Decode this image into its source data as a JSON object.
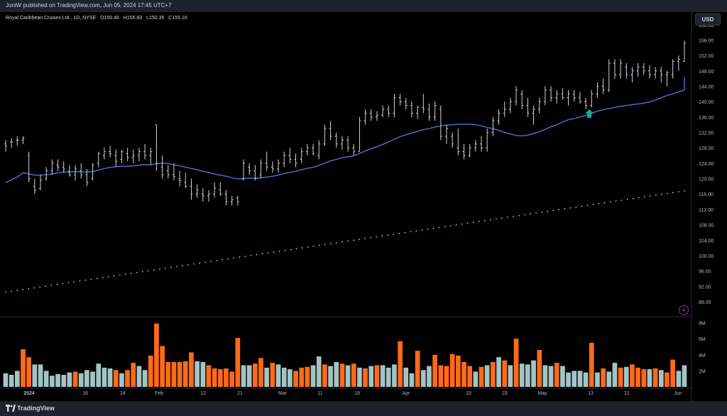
{
  "header": {
    "published_text": "JoniW published on TradingView.com, Jun 05, 2024 17:45 UTC+7"
  },
  "legend": {
    "symbol": "Royal Caribbean Cruises Ltd., 1D, NYSE",
    "o_label": "O",
    "o_value": "150.46",
    "h_label": "H",
    "h_value": "155.83",
    "l_label": "L",
    "l_value": "150.35",
    "c_label": "C",
    "c_value": "155.16"
  },
  "currency_label": "USD",
  "footer": {
    "brand": "TradingView"
  },
  "colors": {
    "background": "#000000",
    "bar": "#d1d4dc",
    "ma_fast": "#4a74d4",
    "ma_slow": "#f5c342",
    "volume_up": "#a3c4c4",
    "volume_down": "#ff6a1a",
    "arrow": "#26a69a",
    "grid_text": "#b2b5be"
  },
  "chart_data": {
    "type": "ohlc",
    "price_axis": {
      "ticks": [
        "88.00",
        "92.00",
        "96.00",
        "100.00",
        "104.00",
        "108.00",
        "112.00",
        "116.00",
        "120.00",
        "124.00",
        "128.00",
        "132.00",
        "136.00",
        "140.00",
        "144.00",
        "148.00",
        "152.00",
        "156.00",
        "160.00"
      ],
      "range": [
        85,
        160
      ]
    },
    "volume_axis": {
      "ticks": [
        "2M",
        "4M",
        "6M",
        "8M"
      ],
      "range": [
        0,
        8.4
      ]
    },
    "time_axis": [
      "2024",
      "16",
      "24",
      "Feb",
      "12",
      "21",
      "Mar",
      "11",
      "19",
      "Apr",
      "15",
      "23",
      "May",
      "13",
      "21",
      "Jun"
    ],
    "bars": [
      {
        "o": 129,
        "h": 130,
        "l": 127,
        "c": 128.5,
        "v": 1.7,
        "up": true
      },
      {
        "o": 129.5,
        "h": 130.5,
        "l": 128,
        "c": 129.5,
        "v": 1.5,
        "up": true
      },
      {
        "o": 130,
        "h": 131,
        "l": 128.5,
        "c": 130,
        "v": 2.0,
        "up": true
      },
      {
        "o": 130,
        "h": 131,
        "l": 129,
        "c": 130.5,
        "v": 4.7,
        "up": false
      },
      {
        "o": 126,
        "h": 127,
        "l": 119,
        "c": 120,
        "v": 3.7,
        "up": false
      },
      {
        "o": 118,
        "h": 120,
        "l": 116,
        "c": 117,
        "v": 2.8,
        "up": true
      },
      {
        "o": 117.5,
        "h": 121,
        "l": 117,
        "c": 119.5,
        "v": 2.8,
        "up": true
      },
      {
        "o": 120,
        "h": 123,
        "l": 119.5,
        "c": 122,
        "v": 2.0,
        "up": true
      },
      {
        "o": 122,
        "h": 125,
        "l": 121,
        "c": 124,
        "v": 1.4,
        "up": true
      },
      {
        "o": 123.5,
        "h": 125,
        "l": 122,
        "c": 123,
        "v": 1.6,
        "up": true
      },
      {
        "o": 123,
        "h": 124.5,
        "l": 121.5,
        "c": 122.5,
        "v": 1.5,
        "up": true
      },
      {
        "o": 122,
        "h": 123.5,
        "l": 120.5,
        "c": 121,
        "v": 1.8,
        "up": true
      },
      {
        "o": 121,
        "h": 123.5,
        "l": 119.5,
        "c": 122.5,
        "v": 1.9,
        "up": false
      },
      {
        "o": 122,
        "h": 124,
        "l": 120,
        "c": 121,
        "v": 1.7,
        "up": true
      },
      {
        "o": 121,
        "h": 122.5,
        "l": 118,
        "c": 119,
        "v": 2.1,
        "up": true
      },
      {
        "o": 120,
        "h": 124,
        "l": 119.5,
        "c": 123.5,
        "v": 1.9,
        "up": true
      },
      {
        "o": 124,
        "h": 127,
        "l": 123,
        "c": 126.5,
        "v": 2.9,
        "up": true
      },
      {
        "o": 126,
        "h": 128,
        "l": 125,
        "c": 127,
        "v": 2.4,
        "up": true
      },
      {
        "o": 127,
        "h": 128.5,
        "l": 125.5,
        "c": 126.5,
        "v": 2.3,
        "up": true
      },
      {
        "o": 126,
        "h": 127.5,
        "l": 123,
        "c": 124.5,
        "v": 2.1,
        "up": false
      },
      {
        "o": 125,
        "h": 127.5,
        "l": 124,
        "c": 127,
        "v": 1.7,
        "up": true
      },
      {
        "o": 126.5,
        "h": 128,
        "l": 124.5,
        "c": 125.5,
        "v": 2.1,
        "up": false
      },
      {
        "o": 125.5,
        "h": 127.5,
        "l": 124,
        "c": 126,
        "v": 3.0,
        "up": false
      },
      {
        "o": 126,
        "h": 128,
        "l": 124.5,
        "c": 127,
        "v": 2.6,
        "up": true
      },
      {
        "o": 127,
        "h": 129,
        "l": 125,
        "c": 126,
        "v": 2.1,
        "up": true
      },
      {
        "o": 126,
        "h": 128,
        "l": 123.5,
        "c": 127,
        "v": 3.9,
        "up": false
      },
      {
        "o": 134,
        "h": 134,
        "l": 122,
        "c": 124,
        "v": 7.9,
        "up": false
      },
      {
        "o": 123,
        "h": 126,
        "l": 120,
        "c": 121,
        "v": 5.1,
        "up": false
      },
      {
        "o": 122,
        "h": 123.5,
        "l": 120,
        "c": 121,
        "v": 3.1,
        "up": false
      },
      {
        "o": 121,
        "h": 124,
        "l": 119.5,
        "c": 120.5,
        "v": 3.1,
        "up": false
      },
      {
        "o": 120,
        "h": 122,
        "l": 118,
        "c": 119.5,
        "v": 3.1,
        "up": false
      },
      {
        "o": 119,
        "h": 121.5,
        "l": 117.5,
        "c": 118,
        "v": 3.2,
        "up": false
      },
      {
        "o": 118,
        "h": 120,
        "l": 114.5,
        "c": 116,
        "v": 4.3,
        "up": false
      },
      {
        "o": 116,
        "h": 118.5,
        "l": 115,
        "c": 117,
        "v": 3.2,
        "up": true
      },
      {
        "o": 116,
        "h": 117.5,
        "l": 114,
        "c": 115.5,
        "v": 3.1,
        "up": true
      },
      {
        "o": 115.5,
        "h": 117,
        "l": 114,
        "c": 116,
        "v": 2.7,
        "up": false
      },
      {
        "o": 116,
        "h": 119,
        "l": 115,
        "c": 117.5,
        "v": 2.3,
        "up": false
      },
      {
        "o": 117,
        "h": 119,
        "l": 115.5,
        "c": 116,
        "v": 2.2,
        "up": false
      },
      {
        "o": 116,
        "h": 117,
        "l": 113,
        "c": 114,
        "v": 2.3,
        "up": false
      },
      {
        "o": 114,
        "h": 115.5,
        "l": 113,
        "c": 114.5,
        "v": 1.9,
        "up": false
      },
      {
        "o": 115,
        "h": 115.5,
        "l": 113,
        "c": 114,
        "v": 6.1,
        "up": false
      },
      {
        "o": 120,
        "h": 125,
        "l": 119.5,
        "c": 124,
        "v": 2.7,
        "up": true
      },
      {
        "o": 123,
        "h": 124,
        "l": 121,
        "c": 122,
        "v": 2.7,
        "up": true
      },
      {
        "o": 122,
        "h": 123.5,
        "l": 119.5,
        "c": 120,
        "v": 2.9,
        "up": false
      },
      {
        "o": 121,
        "h": 125,
        "l": 120,
        "c": 124,
        "v": 3.6,
        "up": false
      },
      {
        "o": 124,
        "h": 127,
        "l": 122,
        "c": 123,
        "v": 2.4,
        "up": true
      },
      {
        "o": 123,
        "h": 124.5,
        "l": 121.5,
        "c": 122.5,
        "v": 3.0,
        "up": false
      },
      {
        "o": 122.5,
        "h": 125,
        "l": 121.5,
        "c": 124,
        "v": 2.8,
        "up": true
      },
      {
        "o": 124,
        "h": 127,
        "l": 123,
        "c": 126,
        "v": 2.4,
        "up": true
      },
      {
        "o": 126,
        "h": 128,
        "l": 124,
        "c": 125,
        "v": 2.2,
        "up": true
      },
      {
        "o": 125,
        "h": 126.5,
        "l": 123,
        "c": 124,
        "v": 2.0,
        "up": false
      },
      {
        "o": 125,
        "h": 128,
        "l": 124,
        "c": 127,
        "v": 2.4,
        "up": false
      },
      {
        "o": 127,
        "h": 129,
        "l": 126,
        "c": 128,
        "v": 2.5,
        "up": false
      },
      {
        "o": 128,
        "h": 129,
        "l": 126,
        "c": 126.5,
        "v": 2.7,
        "up": true
      },
      {
        "o": 126,
        "h": 130,
        "l": 125,
        "c": 129,
        "v": 3.8,
        "up": true
      },
      {
        "o": 129,
        "h": 134,
        "l": 128.5,
        "c": 133,
        "v": 2.8,
        "up": false
      },
      {
        "o": 133,
        "h": 135,
        "l": 130,
        "c": 131,
        "v": 2.6,
        "up": true
      },
      {
        "o": 131,
        "h": 132,
        "l": 128,
        "c": 129,
        "v": 3.1,
        "up": true
      },
      {
        "o": 129,
        "h": 131,
        "l": 127.5,
        "c": 130,
        "v": 2.9,
        "up": false
      },
      {
        "o": 130,
        "h": 131,
        "l": 127,
        "c": 128,
        "v": 2.7,
        "up": true
      },
      {
        "o": 128,
        "h": 129,
        "l": 126,
        "c": 127,
        "v": 2.9,
        "up": false
      },
      {
        "o": 127,
        "h": 136,
        "l": 127,
        "c": 135,
        "v": 2.4,
        "up": true
      },
      {
        "o": 135,
        "h": 138,
        "l": 134,
        "c": 137,
        "v": 2.3,
        "up": false
      },
      {
        "o": 137,
        "h": 138,
        "l": 135,
        "c": 136,
        "v": 2.6,
        "up": true
      },
      {
        "o": 136,
        "h": 137.5,
        "l": 135,
        "c": 136.5,
        "v": 2.7,
        "up": false
      },
      {
        "o": 136.5,
        "h": 139,
        "l": 136,
        "c": 138,
        "v": 2.7,
        "up": true
      },
      {
        "o": 138,
        "h": 139,
        "l": 136,
        "c": 137,
        "v": 2.4,
        "up": true
      },
      {
        "o": 137,
        "h": 142,
        "l": 136,
        "c": 141,
        "v": 2.8,
        "up": true
      },
      {
        "o": 141,
        "h": 142,
        "l": 139,
        "c": 140,
        "v": 5.7,
        "up": false
      },
      {
        "o": 140,
        "h": 141,
        "l": 138,
        "c": 139,
        "v": 2.4,
        "up": true
      },
      {
        "o": 139,
        "h": 140,
        "l": 136,
        "c": 137,
        "v": 1.7,
        "up": true
      },
      {
        "o": 137,
        "h": 139,
        "l": 135.5,
        "c": 138.5,
        "v": 4.5,
        "up": false
      },
      {
        "o": 138.5,
        "h": 142,
        "l": 137,
        "c": 138,
        "v": 2.1,
        "up": true
      },
      {
        "o": 138,
        "h": 139.5,
        "l": 135,
        "c": 136,
        "v": 2.6,
        "up": true
      },
      {
        "o": 136,
        "h": 140,
        "l": 135,
        "c": 139,
        "v": 4.0,
        "up": false
      },
      {
        "o": 138,
        "h": 139,
        "l": 130,
        "c": 131,
        "v": 2.7,
        "up": false
      },
      {
        "o": 131,
        "h": 134,
        "l": 129,
        "c": 133,
        "v": 2.6,
        "up": false
      },
      {
        "o": 131,
        "h": 132,
        "l": 128,
        "c": 129,
        "v": 4.1,
        "up": false
      },
      {
        "o": 128,
        "h": 133,
        "l": 126,
        "c": 127,
        "v": 3.9,
        "up": false
      },
      {
        "o": 127,
        "h": 129,
        "l": 125,
        "c": 126,
        "v": 3.1,
        "up": false
      },
      {
        "o": 126,
        "h": 129,
        "l": 125.5,
        "c": 128,
        "v": 2.6,
        "up": false
      },
      {
        "o": 128,
        "h": 130,
        "l": 127,
        "c": 129,
        "v": 1.9,
        "up": true
      },
      {
        "o": 129,
        "h": 131,
        "l": 127,
        "c": 128,
        "v": 2.5,
        "up": false
      },
      {
        "o": 128,
        "h": 133,
        "l": 127,
        "c": 132,
        "v": 2.7,
        "up": true
      },
      {
        "o": 132,
        "h": 136,
        "l": 131,
        "c": 135,
        "v": 3.1,
        "up": false
      },
      {
        "o": 135,
        "h": 138,
        "l": 134,
        "c": 137,
        "v": 3.7,
        "up": true
      },
      {
        "o": 137,
        "h": 140,
        "l": 136,
        "c": 138,
        "v": 3.3,
        "up": false
      },
      {
        "o": 138,
        "h": 141,
        "l": 137,
        "c": 140,
        "v": 2.7,
        "up": true
      },
      {
        "o": 140,
        "h": 144,
        "l": 139,
        "c": 143,
        "v": 6.0,
        "up": false
      },
      {
        "o": 142,
        "h": 143,
        "l": 138,
        "c": 139,
        "v": 2.9,
        "up": true
      },
      {
        "o": 139,
        "h": 141,
        "l": 136,
        "c": 137,
        "v": 2.8,
        "up": true
      },
      {
        "o": 137,
        "h": 139,
        "l": 134,
        "c": 138,
        "v": 3.3,
        "up": true
      },
      {
        "o": 138,
        "h": 141,
        "l": 137,
        "c": 140,
        "v": 4.6,
        "up": false
      },
      {
        "o": 140,
        "h": 144,
        "l": 139,
        "c": 143,
        "v": 2.7,
        "up": true
      },
      {
        "o": 143,
        "h": 144,
        "l": 140,
        "c": 141,
        "v": 2.6,
        "up": true
      },
      {
        "o": 141,
        "h": 143,
        "l": 139.5,
        "c": 142,
        "v": 3.0,
        "up": false
      },
      {
        "o": 142,
        "h": 143.5,
        "l": 140.5,
        "c": 141,
        "v": 2.6,
        "up": true
      },
      {
        "o": 141,
        "h": 143,
        "l": 139,
        "c": 142,
        "v": 1.8,
        "up": true
      },
      {
        "o": 142,
        "h": 143,
        "l": 140,
        "c": 141,
        "v": 2.0,
        "up": true
      },
      {
        "o": 141,
        "h": 142.5,
        "l": 139.5,
        "c": 140,
        "v": 2.0,
        "up": true
      },
      {
        "o": 140,
        "h": 141,
        "l": 138,
        "c": 139,
        "v": 1.8,
        "up": true
      },
      {
        "o": 139,
        "h": 143,
        "l": 138.5,
        "c": 142,
        "v": 5.5,
        "up": false
      },
      {
        "o": 142,
        "h": 145,
        "l": 141,
        "c": 144,
        "v": 1.8,
        "up": true
      },
      {
        "o": 144,
        "h": 146,
        "l": 142,
        "c": 143,
        "v": 2.3,
        "up": false
      },
      {
        "o": 143,
        "h": 151,
        "l": 142.5,
        "c": 150,
        "v": 1.9,
        "up": true
      },
      {
        "o": 150,
        "h": 151,
        "l": 146,
        "c": 147,
        "v": 3.0,
        "up": true
      },
      {
        "o": 147,
        "h": 151,
        "l": 146,
        "c": 150,
        "v": 2.4,
        "up": false
      },
      {
        "o": 149,
        "h": 150,
        "l": 146,
        "c": 147,
        "v": 2.5,
        "up": true
      },
      {
        "o": 147,
        "h": 149,
        "l": 145,
        "c": 148,
        "v": 2.8,
        "up": false
      },
      {
        "o": 148,
        "h": 150,
        "l": 146.5,
        "c": 149,
        "v": 2.4,
        "up": false
      },
      {
        "o": 149,
        "h": 150,
        "l": 147,
        "c": 148,
        "v": 2.2,
        "up": false
      },
      {
        "o": 148,
        "h": 149.5,
        "l": 146,
        "c": 147,
        "v": 2.2,
        "up": true
      },
      {
        "o": 147,
        "h": 149,
        "l": 146,
        "c": 148,
        "v": 2.3,
        "up": false
      },
      {
        "o": 148,
        "h": 149,
        "l": 145,
        "c": 147,
        "v": 2.1,
        "up": true
      },
      {
        "o": 147,
        "h": 148,
        "l": 144,
        "c": 147.5,
        "v": 1.8,
        "up": false
      },
      {
        "o": 147,
        "h": 151,
        "l": 146,
        "c": 150.5,
        "v": 3.4,
        "up": false
      },
      {
        "o": 150.5,
        "h": 152,
        "l": 148,
        "c": 151,
        "v": 2.0,
        "up": true
      },
      {
        "o": 150.46,
        "h": 155.83,
        "l": 150.35,
        "c": 155.16,
        "v": 2.7,
        "up": true
      }
    ],
    "ma_fast": [
      119,
      119.7,
      120.4,
      121.5,
      121.2,
      120.9,
      120.9,
      121,
      121.2,
      121.5,
      121.7,
      121.7,
      121.8,
      121.7,
      121.7,
      121.8,
      122.2,
      122.6,
      122.9,
      123.1,
      123.2,
      123.2,
      123.3,
      123.5,
      123.6,
      123.6,
      123.9,
      124,
      123.9,
      123.6,
      123.3,
      123,
      122.6,
      122.3,
      121.9,
      121.6,
      121.2,
      120.9,
      120.6,
      120.2,
      119.9,
      120,
      120.1,
      120.1,
      120.2,
      120.4,
      120.6,
      120.9,
      121.3,
      121.6,
      121.9,
      122.3,
      122.7,
      122.9,
      123.4,
      124,
      124.6,
      125,
      125.4,
      125.7,
      125.9,
      126.5,
      127.2,
      127.8,
      128.3,
      128.9,
      129.5,
      130.2,
      130.9,
      131.4,
      131.8,
      132.3,
      132.7,
      133,
      133.4,
      133.7,
      133.9,
      134,
      134.1,
      134.1,
      134.1,
      134,
      133.7,
      133.3,
      133,
      132.5,
      132,
      131.6,
      131.2,
      131.1,
      131.3,
      131.7,
      132.2,
      132.8,
      133.5,
      134,
      134.7,
      135.3,
      135.6,
      136,
      136.4,
      137,
      137.5,
      137.9,
      138.2,
      138.5,
      138.8,
      139,
      139.2,
      139.4,
      139.6,
      139.9,
      140.4,
      141,
      141.6,
      142,
      142.5,
      143,
      143.4,
      143.7,
      144,
      144.3,
      144.5,
      144.7,
      145,
      145.6,
      146.3
    ],
    "ma_slow": [
      90.5,
      116.8
    ],
    "marker": {
      "type": "arrow-up",
      "bar_index": 100
    }
  }
}
